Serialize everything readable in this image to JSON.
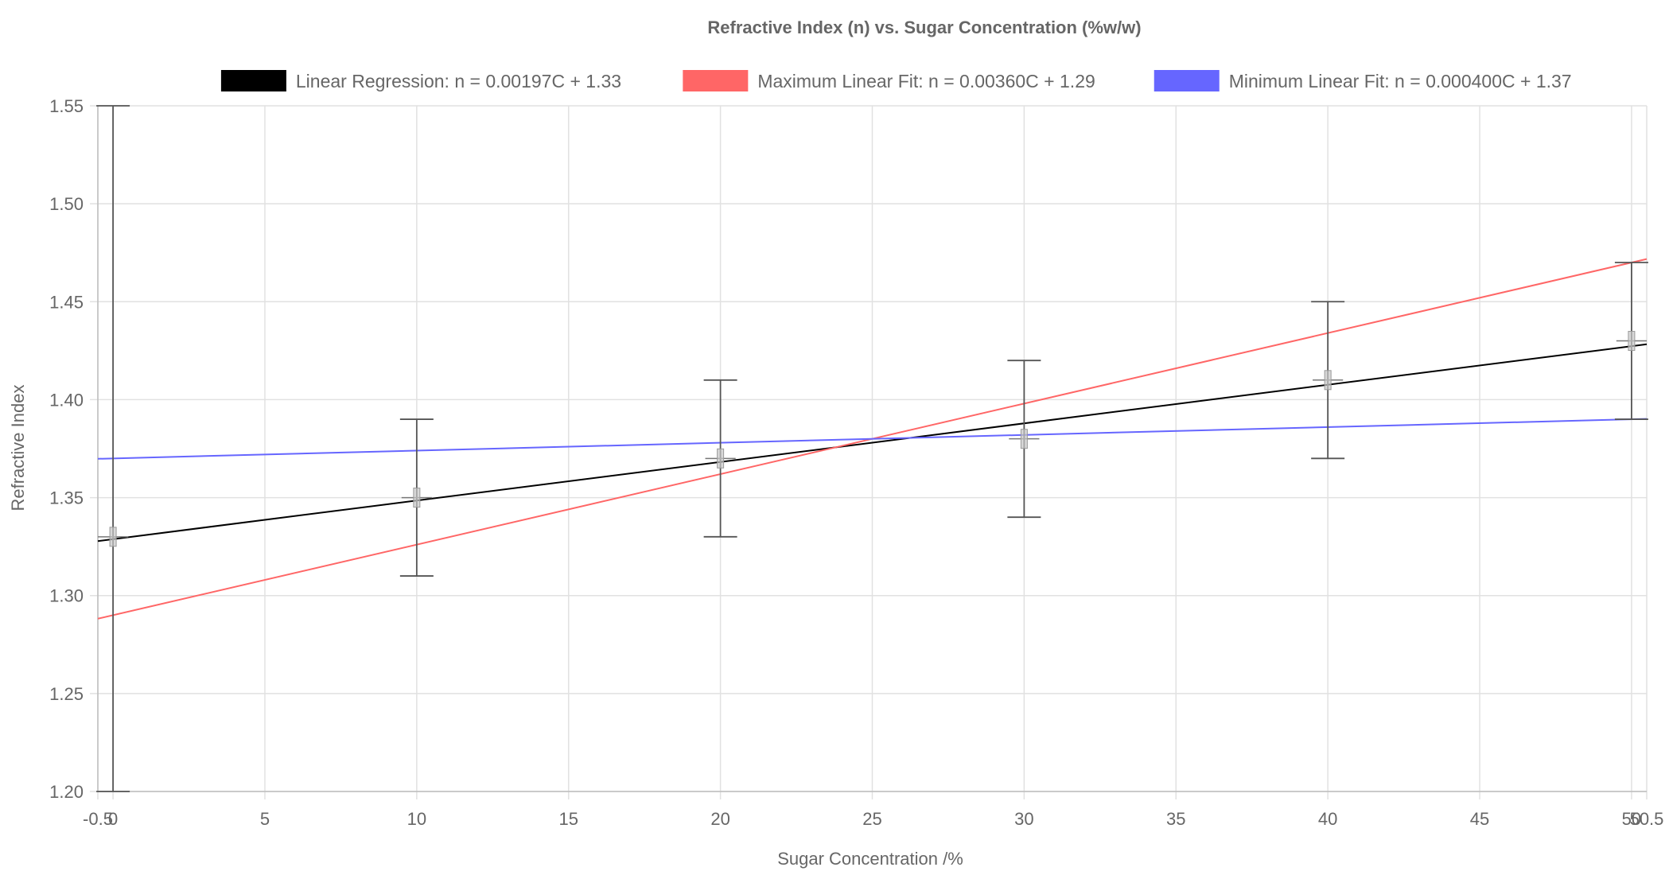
{
  "chart_data": {
    "type": "scatter",
    "title": "Refractive Index (n) vs. Sugar Concentration (%w/w)",
    "xlabel": "Sugar Concentration /%",
    "ylabel": "Refractive Index",
    "xlim": [
      -0.5,
      50.5
    ],
    "ylim": [
      1.2,
      1.55
    ],
    "x_ticks": [
      -0.5,
      0,
      5,
      10,
      15,
      20,
      25,
      30,
      35,
      40,
      45,
      50,
      50.5
    ],
    "x_tick_labels": [
      "-0.5",
      "0",
      "5",
      "10",
      "15",
      "20",
      "25",
      "30",
      "35",
      "40",
      "45",
      "50",
      "50.5"
    ],
    "y_ticks": [
      1.2,
      1.25,
      1.3,
      1.35,
      1.4,
      1.45,
      1.5,
      1.55
    ],
    "y_tick_labels": [
      "1.20",
      "1.25",
      "1.30",
      "1.35",
      "1.40",
      "1.45",
      "1.50",
      "1.55"
    ],
    "grid": true,
    "legend_position": "top",
    "points": [
      {
        "x": 0,
        "y": 1.33,
        "yerr_low": 1.2,
        "yerr_high": 1.55,
        "xerr": 0.5
      },
      {
        "x": 10,
        "y": 1.35,
        "yerr_low": 1.31,
        "yerr_high": 1.39,
        "xerr": 0.5
      },
      {
        "x": 20,
        "y": 1.37,
        "yerr_low": 1.33,
        "yerr_high": 1.41,
        "xerr": 0.5
      },
      {
        "x": 30,
        "y": 1.38,
        "yerr_low": 1.34,
        "yerr_high": 1.42,
        "xerr": 0.5
      },
      {
        "x": 40,
        "y": 1.41,
        "yerr_low": 1.37,
        "yerr_high": 1.45,
        "xerr": 0.5
      },
      {
        "x": 50,
        "y": 1.43,
        "yerr_low": 1.39,
        "yerr_high": 1.47,
        "xerr": 0.5
      }
    ],
    "lines": [
      {
        "name": "Linear Regression:  n = 0.00197C + 1.33",
        "color": "#000000",
        "slope": 0.00197,
        "intercept": 1.3288
      },
      {
        "name": "Maximum Linear Fit:  n = 0.00360C + 1.29",
        "color": "#ff6666",
        "slope": 0.0036,
        "intercept": 1.29
      },
      {
        "name": "Minimum Linear Fit:  n = 0.000400C + 1.37",
        "color": "#6666ff",
        "slope": 0.0004,
        "intercept": 1.37
      }
    ]
  }
}
